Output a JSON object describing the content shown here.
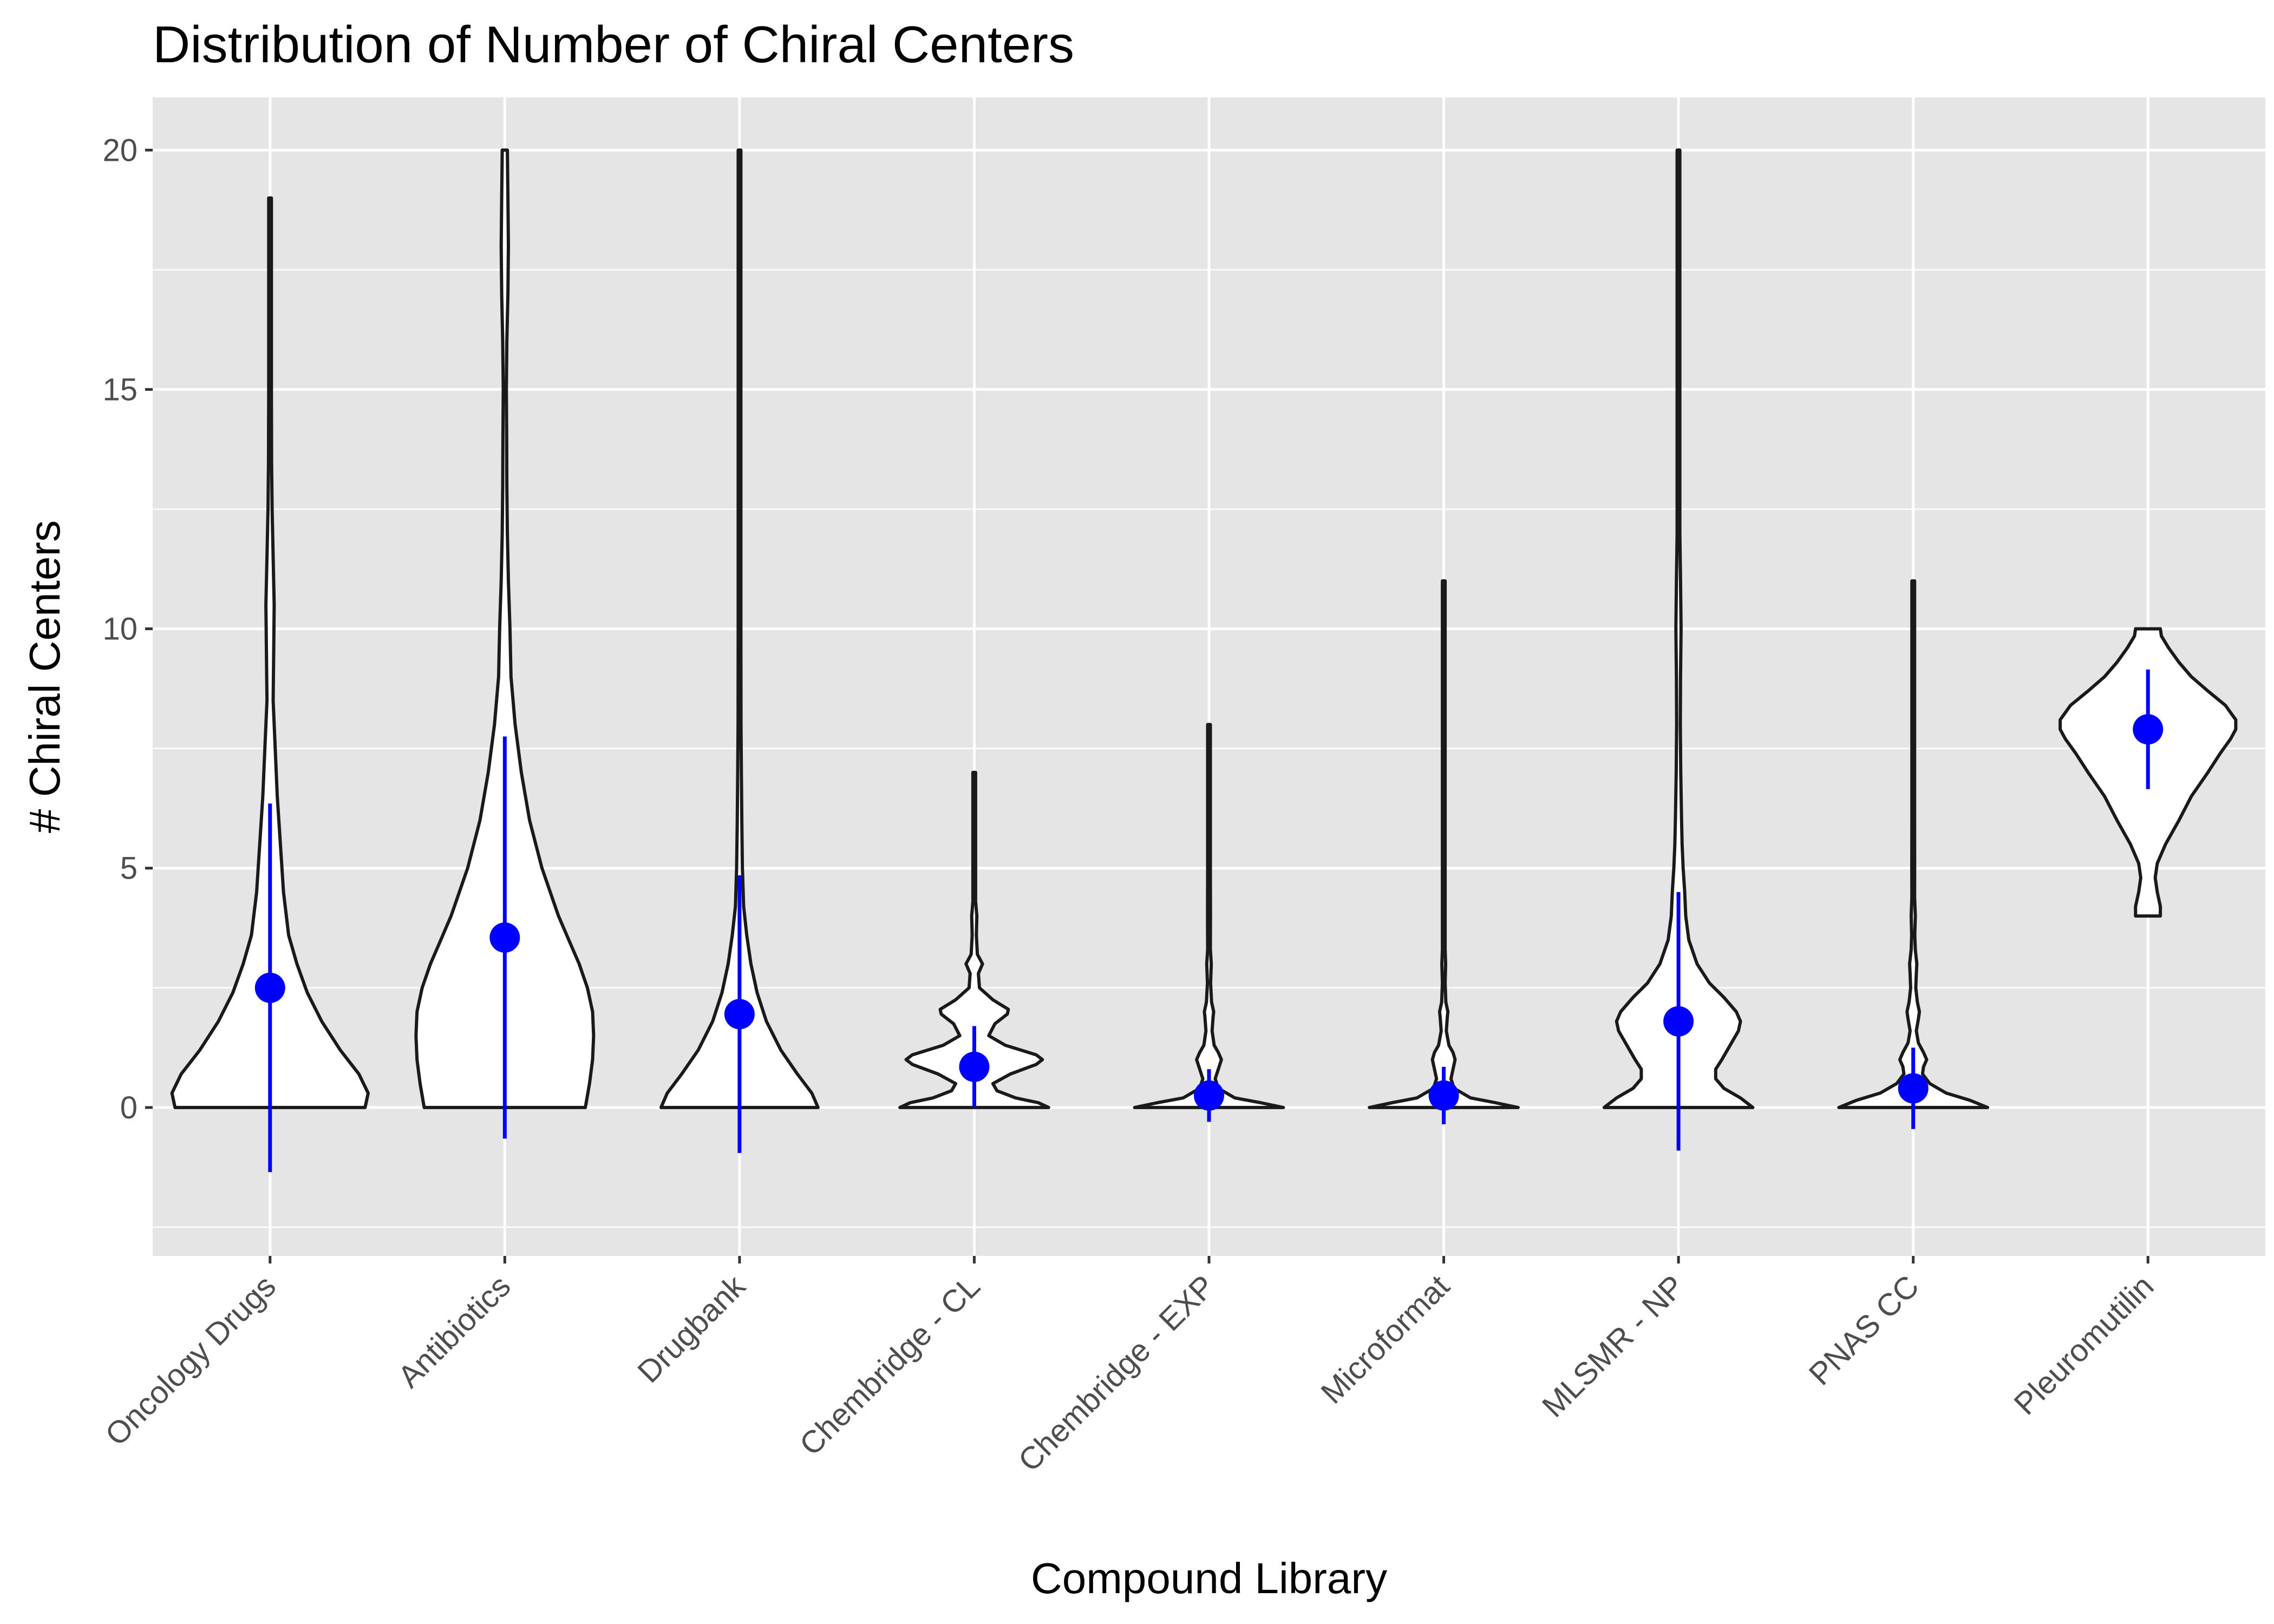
{
  "chart_data": {
    "type": "violin",
    "title": "Distribution of Number of Chiral Centers",
    "xlabel": "Compound Library",
    "ylabel": "# Chiral Centers",
    "ylim": [
      -3.1,
      21.1
    ],
    "yticks": [
      0,
      5,
      10,
      15,
      20
    ],
    "grid": true,
    "legend": "none",
    "colors": {
      "panel": "#e5e5e5",
      "grid": "#ffffff",
      "violin_fill": "#ffffff",
      "violin_outline": "#1a1a1a",
      "summary": "#0000ff",
      "tick_label": "#4d4d4d"
    },
    "categories": [
      "Oncology Drugs",
      "Antibiotics",
      "Drugbank",
      "Chembridge - CL",
      "Chembridge - EXP",
      "Microformat",
      "MLSMR - NP",
      "PNAS CC",
      "Pleuromutilin"
    ],
    "summary": [
      {
        "category": "Oncology Drugs",
        "mean": 2.5,
        "low": -1.35,
        "high": 6.35
      },
      {
        "category": "Antibiotics",
        "mean": 3.55,
        "low": -0.65,
        "high": 7.75
      },
      {
        "category": "Drugbank",
        "mean": 1.95,
        "low": -0.95,
        "high": 4.85
      },
      {
        "category": "Chembridge - CL",
        "mean": 0.85,
        "low": 0.0,
        "high": 1.7
      },
      {
        "category": "Chembridge - EXP",
        "mean": 0.25,
        "low": -0.3,
        "high": 0.8
      },
      {
        "category": "Microformat",
        "mean": 0.25,
        "low": -0.35,
        "high": 0.85
      },
      {
        "category": "MLSMR - NP",
        "mean": 1.8,
        "low": -0.9,
        "high": 4.5
      },
      {
        "category": "PNAS CC",
        "mean": 0.4,
        "low": -0.45,
        "high": 1.25
      },
      {
        "category": "Pleuromutilin",
        "mean": 7.9,
        "low": 6.65,
        "high": 9.15
      }
    ],
    "density_profiles": [
      {
        "category": "Oncology Drugs",
        "range": [
          0,
          19
        ],
        "profile": [
          [
            0,
            0.92
          ],
          [
            0.3,
            0.95
          ],
          [
            0.7,
            0.86
          ],
          [
            1.2,
            0.68
          ],
          [
            1.8,
            0.5
          ],
          [
            2.4,
            0.36
          ],
          [
            3.0,
            0.26
          ],
          [
            3.6,
            0.18
          ],
          [
            4.5,
            0.13
          ],
          [
            5.5,
            0.1
          ],
          [
            6.5,
            0.07
          ],
          [
            7.5,
            0.05
          ],
          [
            8.5,
            0.03
          ],
          [
            9.5,
            0.035
          ],
          [
            10.5,
            0.04
          ],
          [
            11.5,
            0.03
          ],
          [
            12.5,
            0.02
          ],
          [
            13.5,
            0.015
          ],
          [
            15,
            0.012
          ],
          [
            16.5,
            0.01
          ],
          [
            18,
            0.008
          ],
          [
            19,
            0.005
          ]
        ]
      },
      {
        "category": "Antibiotics",
        "range": [
          0,
          20
        ],
        "profile": [
          [
            0,
            0.78
          ],
          [
            0.5,
            0.82
          ],
          [
            1.0,
            0.85
          ],
          [
            1.5,
            0.86
          ],
          [
            2.0,
            0.85
          ],
          [
            2.5,
            0.8
          ],
          [
            3.0,
            0.72
          ],
          [
            3.5,
            0.62
          ],
          [
            4.0,
            0.52
          ],
          [
            5.0,
            0.36
          ],
          [
            6.0,
            0.24
          ],
          [
            7.0,
            0.16
          ],
          [
            8.0,
            0.1
          ],
          [
            9.0,
            0.06
          ],
          [
            10.0,
            0.05
          ],
          [
            11.0,
            0.035
          ],
          [
            12.0,
            0.025
          ],
          [
            13.0,
            0.02
          ],
          [
            14.0,
            0.018
          ],
          [
            15.0,
            0.015
          ],
          [
            16.0,
            0.02
          ],
          [
            17.0,
            0.03
          ],
          [
            18.0,
            0.035
          ],
          [
            19.0,
            0.03
          ],
          [
            20,
            0.025
          ]
        ]
      },
      {
        "category": "Drugbank",
        "range": [
          0,
          20
        ],
        "profile": [
          [
            0,
            0.76
          ],
          [
            0.3,
            0.7
          ],
          [
            0.7,
            0.56
          ],
          [
            1.2,
            0.4
          ],
          [
            1.8,
            0.26
          ],
          [
            2.4,
            0.17
          ],
          [
            3.0,
            0.11
          ],
          [
            3.6,
            0.07
          ],
          [
            4.2,
            0.04
          ],
          [
            5.0,
            0.028
          ],
          [
            6.0,
            0.022
          ],
          [
            7.0,
            0.018
          ],
          [
            8.0,
            0.014
          ],
          [
            10.0,
            0.01
          ],
          [
            12.0,
            0.008
          ],
          [
            15.0,
            0.006
          ],
          [
            18.0,
            0.004
          ],
          [
            20,
            0.003
          ]
        ]
      },
      {
        "category": "Chembridge - CL",
        "range": [
          0,
          7
        ],
        "profile": [
          [
            0,
            0.72
          ],
          [
            0.1,
            0.62
          ],
          [
            0.2,
            0.4
          ],
          [
            0.35,
            0.22
          ],
          [
            0.5,
            0.18
          ],
          [
            0.7,
            0.35
          ],
          [
            0.9,
            0.6
          ],
          [
            1.0,
            0.66
          ],
          [
            1.1,
            0.6
          ],
          [
            1.3,
            0.3
          ],
          [
            1.5,
            0.14
          ],
          [
            1.75,
            0.2
          ],
          [
            1.95,
            0.32
          ],
          [
            2.05,
            0.33
          ],
          [
            2.25,
            0.18
          ],
          [
            2.5,
            0.05
          ],
          [
            2.8,
            0.04
          ],
          [
            3.0,
            0.08
          ],
          [
            3.2,
            0.03
          ],
          [
            3.6,
            0.02
          ],
          [
            4.0,
            0.025
          ],
          [
            4.3,
            0.012
          ],
          [
            5.0,
            0.008
          ],
          [
            6.0,
            0.006
          ],
          [
            7,
            0.004
          ]
        ]
      },
      {
        "category": "Chembridge - EXP",
        "range": [
          0,
          8
        ],
        "profile": [
          [
            0,
            0.72
          ],
          [
            0.1,
            0.5
          ],
          [
            0.2,
            0.25
          ],
          [
            0.4,
            0.09
          ],
          [
            0.6,
            0.06
          ],
          [
            0.8,
            0.09
          ],
          [
            1.0,
            0.12
          ],
          [
            1.15,
            0.09
          ],
          [
            1.3,
            0.05
          ],
          [
            1.6,
            0.03
          ],
          [
            1.9,
            0.04
          ],
          [
            2.0,
            0.045
          ],
          [
            2.2,
            0.025
          ],
          [
            2.6,
            0.015
          ],
          [
            3.0,
            0.022
          ],
          [
            3.3,
            0.012
          ],
          [
            4.0,
            0.014
          ],
          [
            5.0,
            0.008
          ],
          [
            6.0,
            0.006
          ],
          [
            7.0,
            0.005
          ],
          [
            8,
            0.004
          ]
        ]
      },
      {
        "category": "Microformat",
        "range": [
          0,
          11
        ],
        "profile": [
          [
            0,
            0.72
          ],
          [
            0.1,
            0.5
          ],
          [
            0.2,
            0.26
          ],
          [
            0.4,
            0.1
          ],
          [
            0.6,
            0.07
          ],
          [
            0.8,
            0.09
          ],
          [
            1.0,
            0.11
          ],
          [
            1.15,
            0.09
          ],
          [
            1.3,
            0.05
          ],
          [
            1.6,
            0.025
          ],
          [
            1.9,
            0.035
          ],
          [
            2.0,
            0.04
          ],
          [
            2.2,
            0.02
          ],
          [
            2.6,
            0.012
          ],
          [
            3.0,
            0.018
          ],
          [
            3.3,
            0.01
          ],
          [
            4.0,
            0.012
          ],
          [
            5.0,
            0.006
          ],
          [
            7.0,
            0.005
          ],
          [
            9.0,
            0.004
          ],
          [
            11,
            0.003
          ]
        ]
      },
      {
        "category": "MLSMR - NP",
        "range": [
          0,
          20
        ],
        "profile": [
          [
            0,
            0.72
          ],
          [
            0.2,
            0.6
          ],
          [
            0.4,
            0.44
          ],
          [
            0.6,
            0.36
          ],
          [
            0.8,
            0.36
          ],
          [
            1.0,
            0.42
          ],
          [
            1.3,
            0.5
          ],
          [
            1.6,
            0.58
          ],
          [
            1.8,
            0.6
          ],
          [
            2.0,
            0.56
          ],
          [
            2.3,
            0.44
          ],
          [
            2.6,
            0.3
          ],
          [
            3.0,
            0.18
          ],
          [
            3.5,
            0.1
          ],
          [
            4.0,
            0.07
          ],
          [
            4.5,
            0.06
          ],
          [
            5.0,
            0.045
          ],
          [
            5.5,
            0.035
          ],
          [
            6.0,
            0.03
          ],
          [
            7.0,
            0.022
          ],
          [
            8.0,
            0.018
          ],
          [
            9.0,
            0.02
          ],
          [
            10.0,
            0.025
          ],
          [
            11.0,
            0.02
          ],
          [
            12.0,
            0.012
          ],
          [
            14.0,
            0.008
          ],
          [
            17.0,
            0.006
          ],
          [
            20,
            0.004
          ]
        ]
      },
      {
        "category": "PNAS CC",
        "range": [
          0,
          11
        ],
        "profile": [
          [
            0,
            0.72
          ],
          [
            0.15,
            0.55
          ],
          [
            0.3,
            0.32
          ],
          [
            0.5,
            0.16
          ],
          [
            0.7,
            0.09
          ],
          [
            0.85,
            0.1
          ],
          [
            1.0,
            0.13
          ],
          [
            1.15,
            0.1
          ],
          [
            1.35,
            0.05
          ],
          [
            1.6,
            0.03
          ],
          [
            1.85,
            0.05
          ],
          [
            2.0,
            0.06
          ],
          [
            2.2,
            0.04
          ],
          [
            2.5,
            0.025
          ],
          [
            2.8,
            0.03
          ],
          [
            3.0,
            0.035
          ],
          [
            3.3,
            0.02
          ],
          [
            3.6,
            0.015
          ],
          [
            4.0,
            0.02
          ],
          [
            4.4,
            0.012
          ],
          [
            5.0,
            0.014
          ],
          [
            6.0,
            0.008
          ],
          [
            8.0,
            0.006
          ],
          [
            11,
            0.004
          ]
        ]
      },
      {
        "category": "Pleuromutilin",
        "range": [
          4,
          10
        ],
        "profile": [
          [
            4,
            0.12
          ],
          [
            4.2,
            0.12
          ],
          [
            4.5,
            0.09
          ],
          [
            4.8,
            0.07
          ],
          [
            5.1,
            0.09
          ],
          [
            5.5,
            0.17
          ],
          [
            6.0,
            0.3
          ],
          [
            6.5,
            0.42
          ],
          [
            7.0,
            0.58
          ],
          [
            7.4,
            0.7
          ],
          [
            7.7,
            0.8
          ],
          [
            7.9,
            0.85
          ],
          [
            8.1,
            0.85
          ],
          [
            8.4,
            0.75
          ],
          [
            8.7,
            0.58
          ],
          [
            9.0,
            0.42
          ],
          [
            9.3,
            0.3
          ],
          [
            9.6,
            0.2
          ],
          [
            9.85,
            0.13
          ],
          [
            10,
            0.12
          ]
        ]
      }
    ]
  }
}
